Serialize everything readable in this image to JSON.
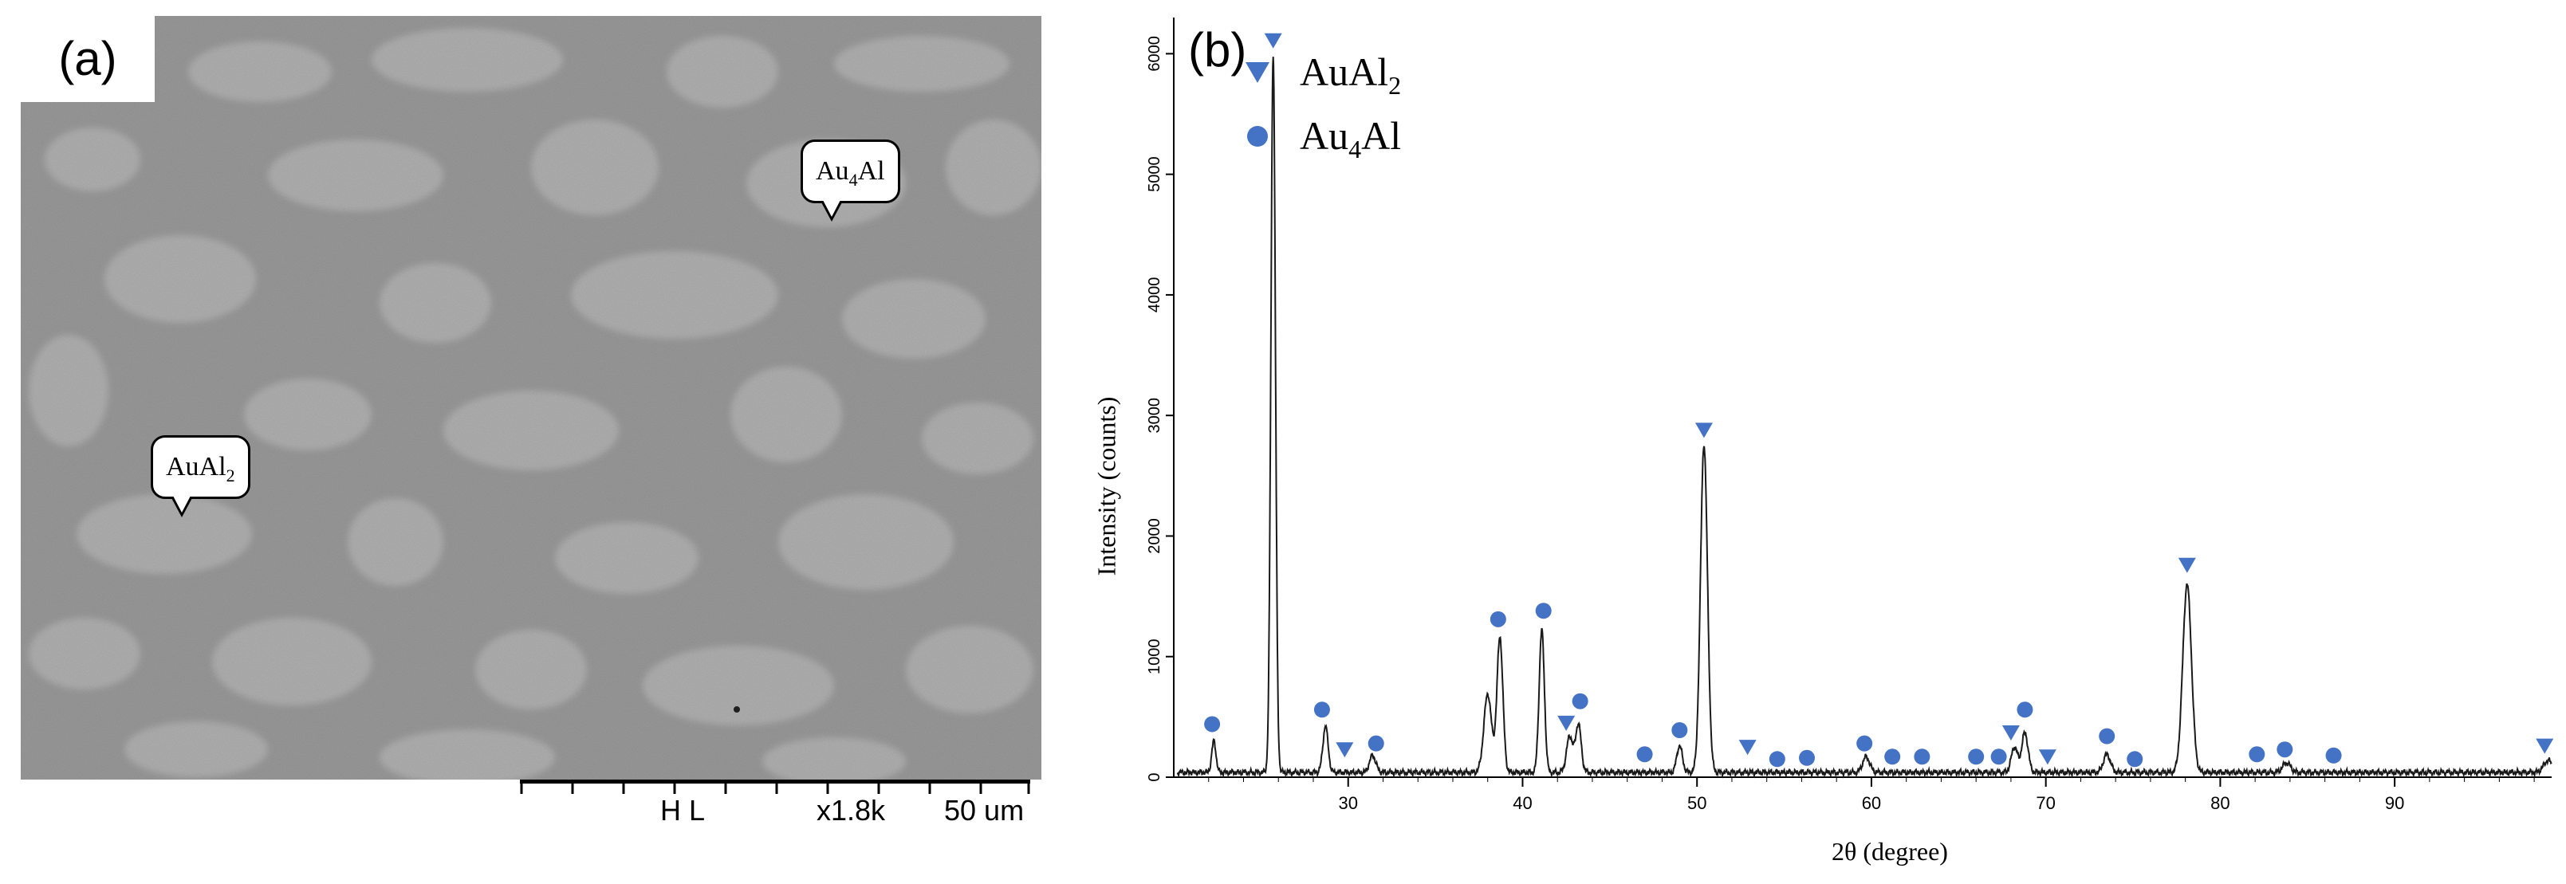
{
  "panel_a": {
    "label": "(a)",
    "callouts": [
      {
        "base": "Au",
        "sub": "4",
        "rest": "Al"
      },
      {
        "base": "AuAl",
        "sub": "2",
        "rest": ""
      }
    ],
    "scalebar": {
      "mode": "H L",
      "magnification": "x1.8k",
      "length": "50 um"
    }
  },
  "panel_b": {
    "label": "(b)",
    "legend": [
      {
        "base": "AuAl",
        "sub": "2",
        "rest": "",
        "marker": "triangle"
      },
      {
        "base": "Au",
        "sub": "4",
        "rest": "Al",
        "marker": "circle"
      }
    ],
    "marker_color": "#4472c4",
    "chart_data": {
      "type": "line",
      "title": "",
      "xlabel": "2θ (degree)",
      "ylabel": "Intensity (counts)",
      "xlim": [
        20,
        99
      ],
      "ylim": [
        0,
        6300
      ],
      "xticks": [
        30,
        40,
        50,
        60,
        70,
        80,
        90
      ],
      "yticks": [
        0,
        1000,
        2000,
        3000,
        4000,
        5000,
        6000
      ],
      "baseline": 40,
      "peaks": [
        {
          "x": 22.3,
          "y": 260,
          "w": 0.12
        },
        {
          "x": 25.7,
          "y": 5950,
          "w": 0.13
        },
        {
          "x": 28.7,
          "y": 380,
          "w": 0.15
        },
        {
          "x": 31.4,
          "y": 140,
          "w": 0.18
        },
        {
          "x": 38.0,
          "y": 650,
          "w": 0.22
        },
        {
          "x": 38.7,
          "y": 1120,
          "w": 0.17
        },
        {
          "x": 41.1,
          "y": 1180,
          "w": 0.15
        },
        {
          "x": 42.7,
          "y": 300,
          "w": 0.18
        },
        {
          "x": 43.2,
          "y": 400,
          "w": 0.16
        },
        {
          "x": 49.0,
          "y": 220,
          "w": 0.16
        },
        {
          "x": 50.4,
          "y": 2720,
          "w": 0.2
        },
        {
          "x": 59.7,
          "y": 130,
          "w": 0.2
        },
        {
          "x": 68.2,
          "y": 210,
          "w": 0.18
        },
        {
          "x": 68.8,
          "y": 330,
          "w": 0.18
        },
        {
          "x": 73.5,
          "y": 150,
          "w": 0.2
        },
        {
          "x": 78.1,
          "y": 1560,
          "w": 0.25
        },
        {
          "x": 83.8,
          "y": 80,
          "w": 0.22
        },
        {
          "x": 98.8,
          "y": 100,
          "w": 0.25
        }
      ],
      "markers": [
        {
          "phase": "AuAl2",
          "x": 25.7,
          "y": 6110
        },
        {
          "phase": "AuAl2",
          "x": 29.8,
          "y": 230
        },
        {
          "phase": "AuAl2",
          "x": 42.5,
          "y": 450
        },
        {
          "phase": "AuAl2",
          "x": 50.4,
          "y": 2880
        },
        {
          "phase": "AuAl2",
          "x": 52.9,
          "y": 250
        },
        {
          "phase": "AuAl2",
          "x": 68.0,
          "y": 370
        },
        {
          "phase": "AuAl2",
          "x": 70.1,
          "y": 170
        },
        {
          "phase": "AuAl2",
          "x": 78.1,
          "y": 1760
        },
        {
          "phase": "AuAl2",
          "x": 98.6,
          "y": 260
        },
        {
          "phase": "Au4Al",
          "x": 22.2,
          "y": 440
        },
        {
          "phase": "Au4Al",
          "x": 28.5,
          "y": 560
        },
        {
          "phase": "Au4Al",
          "x": 31.6,
          "y": 280
        },
        {
          "phase": "Au4Al",
          "x": 38.6,
          "y": 1310
        },
        {
          "phase": "Au4Al",
          "x": 41.2,
          "y": 1380
        },
        {
          "phase": "Au4Al",
          "x": 43.3,
          "y": 630
        },
        {
          "phase": "Au4Al",
          "x": 47.0,
          "y": 190
        },
        {
          "phase": "Au4Al",
          "x": 49.0,
          "y": 390
        },
        {
          "phase": "Au4Al",
          "x": 54.6,
          "y": 150
        },
        {
          "phase": "Au4Al",
          "x": 56.3,
          "y": 160
        },
        {
          "phase": "Au4Al",
          "x": 59.6,
          "y": 280
        },
        {
          "phase": "Au4Al",
          "x": 61.2,
          "y": 170
        },
        {
          "phase": "Au4Al",
          "x": 62.9,
          "y": 170
        },
        {
          "phase": "Au4Al",
          "x": 66.0,
          "y": 170
        },
        {
          "phase": "Au4Al",
          "x": 67.3,
          "y": 170
        },
        {
          "phase": "Au4Al",
          "x": 68.8,
          "y": 560
        },
        {
          "phase": "Au4Al",
          "x": 73.5,
          "y": 340
        },
        {
          "phase": "Au4Al",
          "x": 75.1,
          "y": 150
        },
        {
          "phase": "Au4Al",
          "x": 82.1,
          "y": 190
        },
        {
          "phase": "Au4Al",
          "x": 83.7,
          "y": 230
        },
        {
          "phase": "Au4Al",
          "x": 86.5,
          "y": 180
        }
      ]
    }
  }
}
